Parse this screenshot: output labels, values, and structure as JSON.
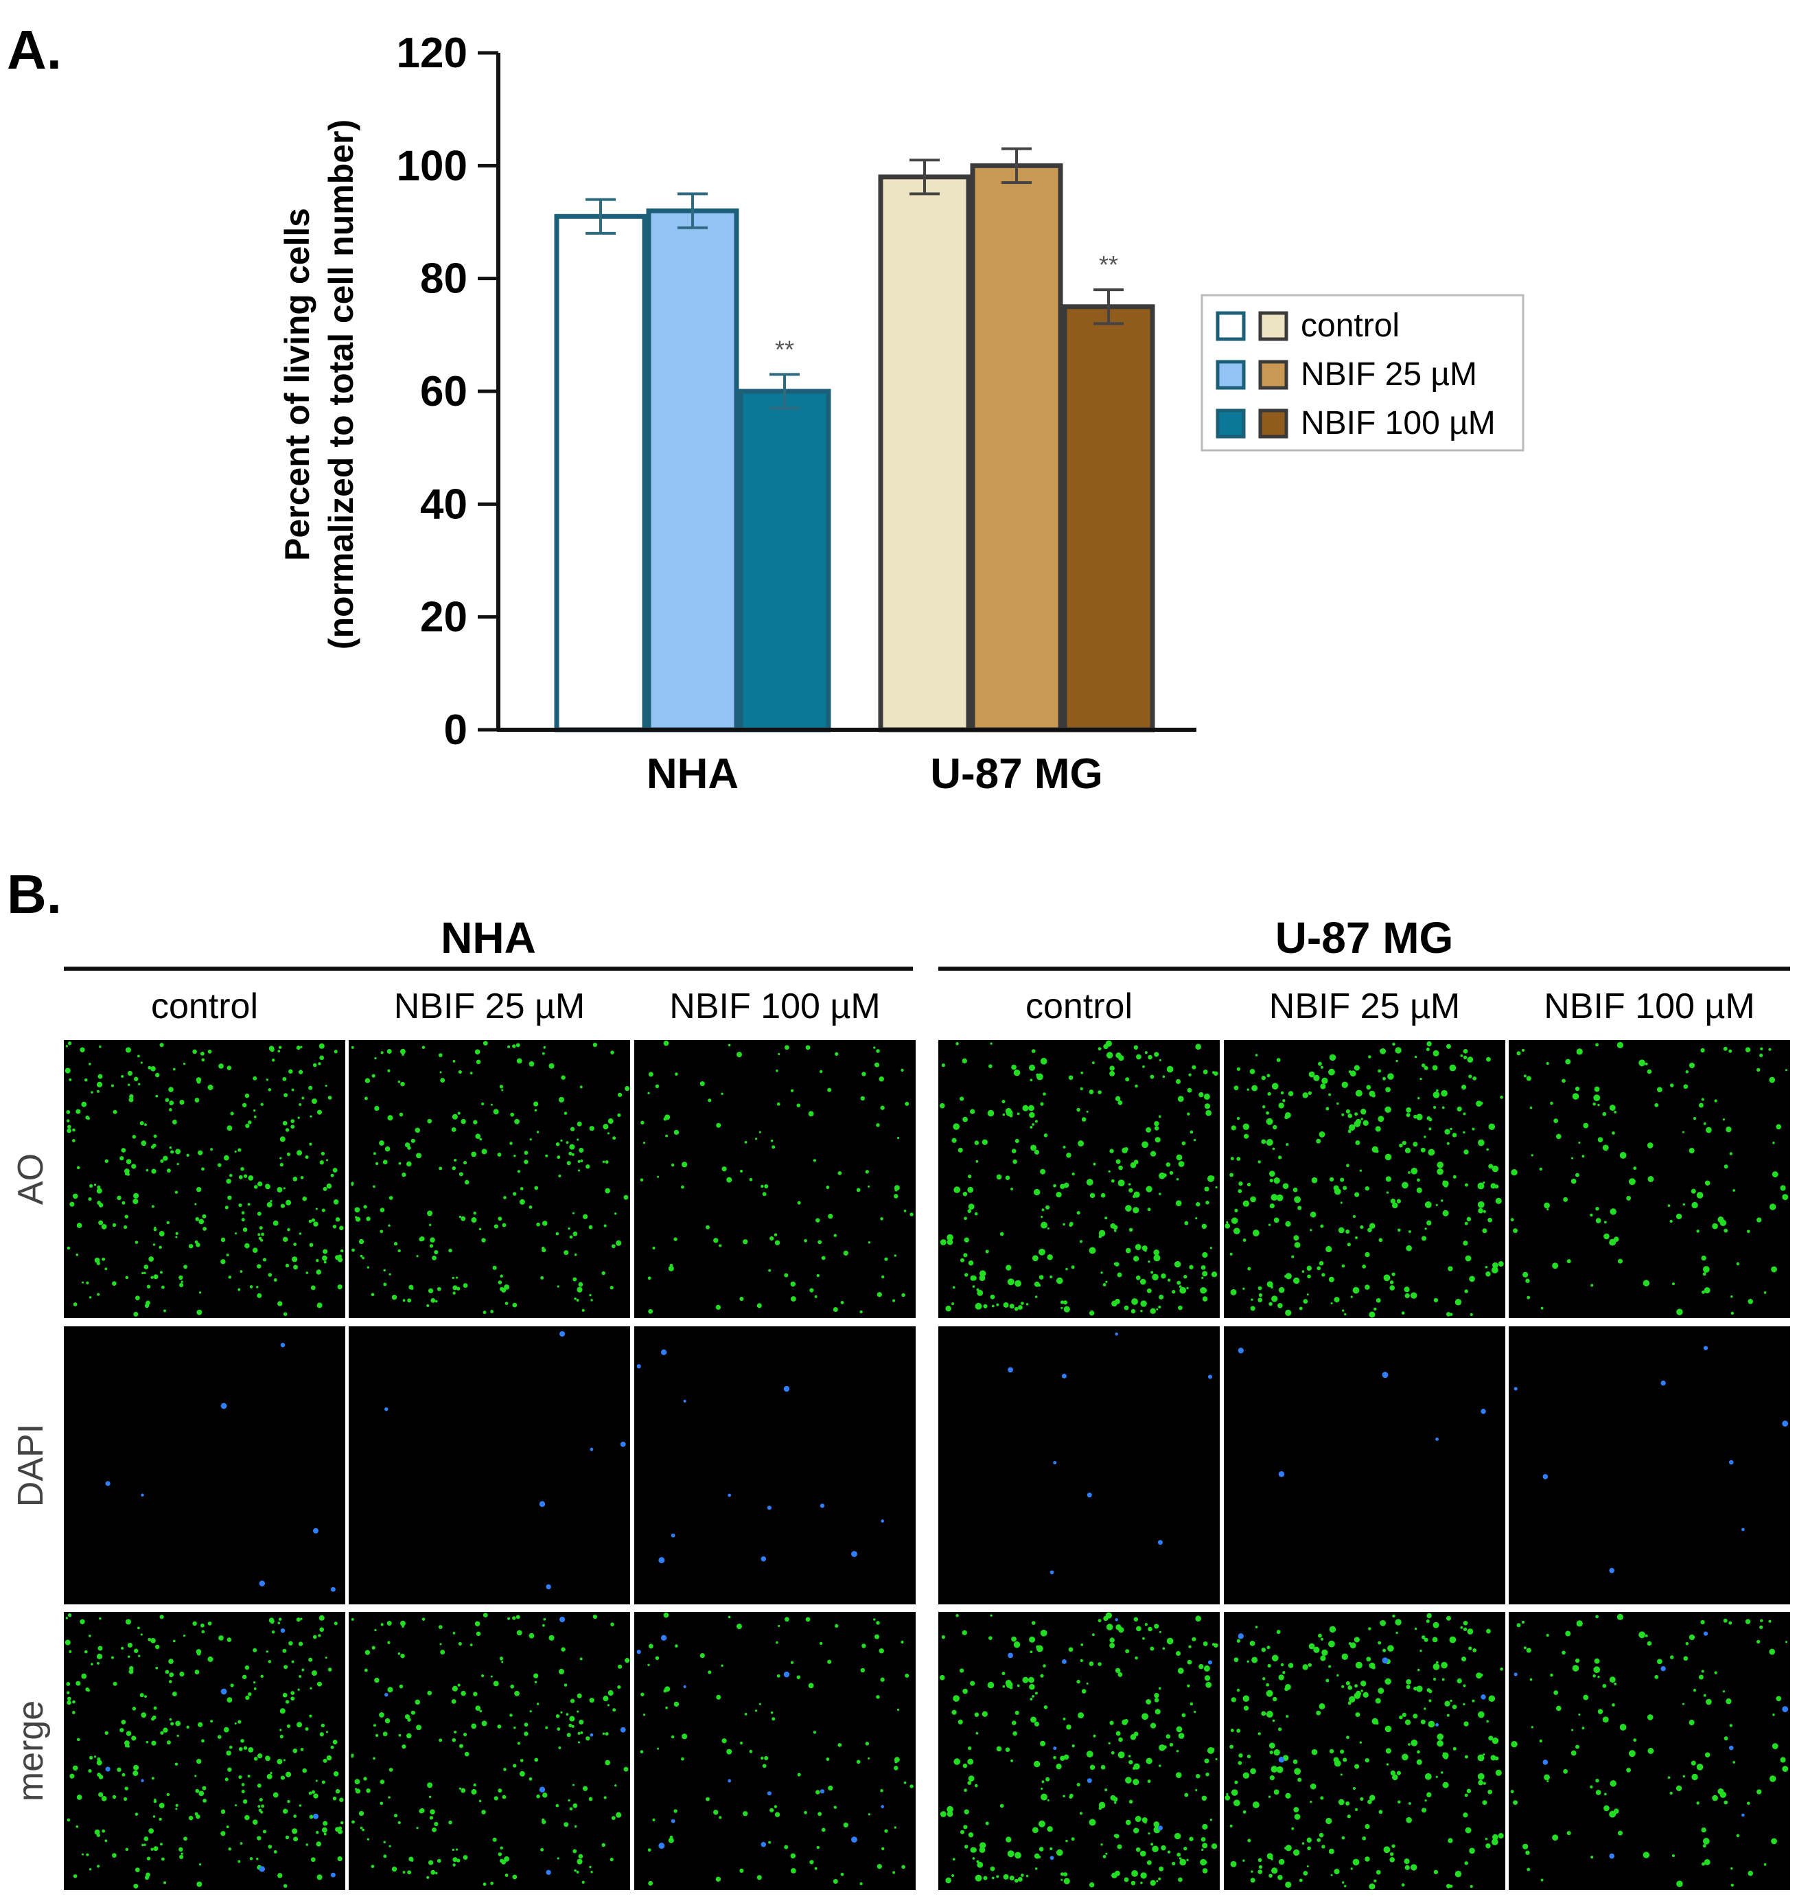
{
  "panel_a": {
    "letter": "A.",
    "chart_data": {
      "type": "bar",
      "categories": [
        "NHA",
        "U-87 MG"
      ],
      "series": [
        {
          "name": "control",
          "values": [
            91,
            98
          ],
          "errors": [
            3,
            3
          ]
        },
        {
          "name": "NBIF 25 µM",
          "values": [
            92,
            100
          ],
          "errors": [
            3,
            3
          ]
        },
        {
          "name": "NBIF 100 µM",
          "values": [
            60,
            75
          ],
          "errors": [
            3,
            3
          ]
        }
      ],
      "ylabel_line1": "Percent of living cells",
      "ylabel_line2": "(normalized to total cell number)",
      "ylim": [
        0,
        120
      ],
      "yticks": [
        "0",
        "20",
        "40",
        "60",
        "80",
        "100",
        "120"
      ],
      "significance": [
        {
          "category": "NHA",
          "series": "NBIF 100 µM",
          "label": "**"
        },
        {
          "category": "U-87 MG",
          "series": "NBIF 100 µM",
          "label": "**"
        }
      ],
      "legend": {
        "placement": "right",
        "entries": [
          "control",
          "NBIF 25 µM",
          "NBIF 100 µM"
        ]
      },
      "colors": {
        "NHA": {
          "fills": [
            "#ffffff",
            "#94c2f4",
            "#0a7896"
          ],
          "edge": "#1c5f78",
          "error": "#2e6b80"
        },
        "U-87 MG": {
          "fills": [
            "#ede4c4",
            "#c99852",
            "#905c1e"
          ],
          "edge": "#3a3a3a",
          "error": "#444444"
        }
      }
    }
  },
  "panel_b": {
    "letter": "B.",
    "groups": [
      {
        "name": "NHA",
        "columns": [
          "control",
          "NBIF 25 µM",
          "NBIF 100 µM"
        ]
      },
      {
        "name": "U-87 MG",
        "columns": [
          "control",
          "NBIF 25 µM",
          "NBIF 100 µM"
        ]
      }
    ],
    "rows": [
      "AO",
      "DAPI",
      "merge"
    ],
    "colors": {
      "ao": "#22dd22",
      "dapi": "#2f7fff",
      "background": "#000000"
    }
  }
}
